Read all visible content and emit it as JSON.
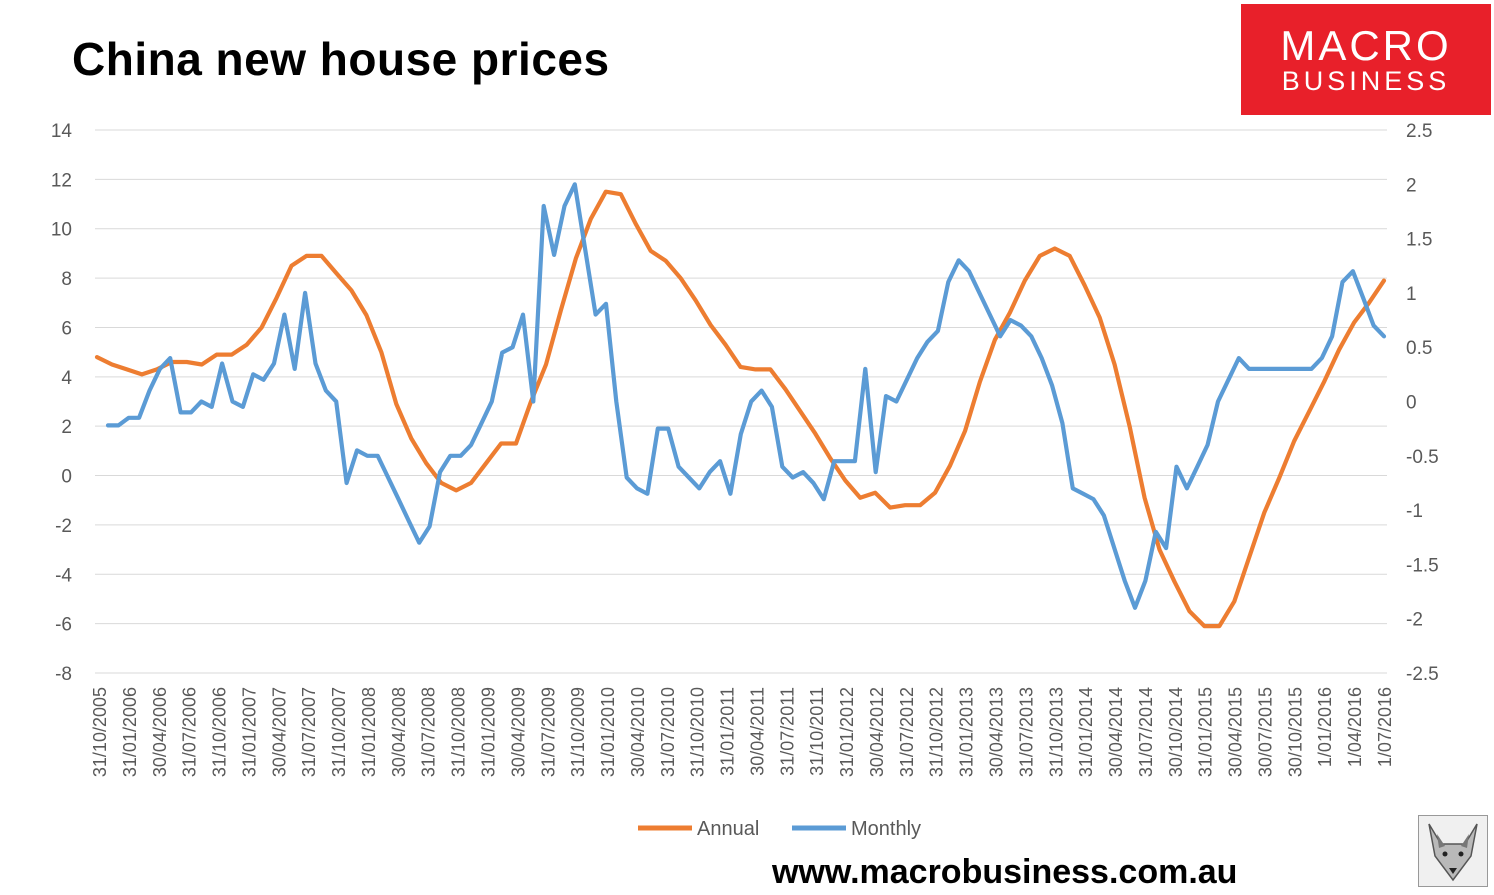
{
  "header": {
    "title": "China new house prices"
  },
  "logo": {
    "line1": "MACRO",
    "line2": "BUSINESS"
  },
  "footer": {
    "url": "www.macrobusiness.com.au"
  },
  "colors": {
    "annual": "#ed7d31",
    "monthly": "#5b9bd5",
    "logo_bg": "#e8202a",
    "grid": "#d9d9d9"
  },
  "chart_data": {
    "type": "line",
    "title": "China new house prices",
    "y_left": {
      "ylim": [
        -8,
        14
      ],
      "ticks": [
        "14",
        "12",
        "10",
        "8",
        "6",
        "4",
        "2",
        "0",
        "-2",
        "-4",
        "-6",
        "-8"
      ]
    },
    "y_right": {
      "ylim": [
        -2.5,
        2.5
      ],
      "ticks": [
        "2.5",
        "2",
        "1.5",
        "1",
        "0.5",
        "0",
        "-0.5",
        "-1",
        "-1.5",
        "-2",
        "-2.5"
      ]
    },
    "x_tick_labels": [
      "31/10/2005",
      "31/01/2006",
      "30/04/2006",
      "31/07/2006",
      "31/10/2006",
      "31/01/2007",
      "30/04/2007",
      "31/07/2007",
      "31/10/2007",
      "31/01/2008",
      "30/04/2008",
      "31/07/2008",
      "31/10/2008",
      "31/01/2009",
      "30/04/2009",
      "31/07/2009",
      "31/10/2009",
      "31/01/2010",
      "30/04/2010",
      "31/07/2010",
      "31/10/2010",
      "31/01/2011",
      "30/04/2011",
      "31/07/2011",
      "31/10/2011",
      "31/01/2012",
      "30/04/2012",
      "31/07/2012",
      "31/10/2012",
      "31/01/2013",
      "30/04/2013",
      "31/07/2013",
      "31/10/2013",
      "31/01/2014",
      "30/04/2014",
      "31/07/2014",
      "30/10/2014",
      "31/01/2015",
      "30/04/2015",
      "30/07/2015",
      "30/10/2015",
      "1/01/2016",
      "1/04/2016",
      "1/07/2016"
    ],
    "grid": true,
    "legend_position": "bottom",
    "series": [
      {
        "name": "Annual",
        "axis": "left",
        "values": [
          4.8,
          4.5,
          4.3,
          4.1,
          4.3,
          4.6,
          4.6,
          4.5,
          4.9,
          4.9,
          5.3,
          6.0,
          7.2,
          8.5,
          8.9,
          8.9,
          8.2,
          7.5,
          6.5,
          5.0,
          2.9,
          1.5,
          0.5,
          -0.3,
          -0.6,
          -0.3,
          0.5,
          1.3,
          1.3,
          3.0,
          4.5,
          6.7,
          8.8,
          10.4,
          11.5,
          11.4,
          10.2,
          9.1,
          8.7,
          8.0,
          7.1,
          6.1,
          5.3,
          4.4,
          4.3,
          4.3,
          3.5,
          2.6,
          1.7,
          0.7,
          -0.2,
          -0.9,
          -0.7,
          -1.3,
          -1.2,
          -1.2,
          -0.7,
          0.4,
          1.8,
          3.8,
          5.5,
          6.6,
          7.9,
          8.9,
          9.2,
          8.9,
          7.7,
          6.4,
          4.5,
          2.0,
          -0.9,
          -3.0,
          -4.3,
          -5.5,
          -6.1,
          -6.1,
          -5.1,
          -3.3,
          -1.5,
          -0.1,
          1.4,
          2.6,
          3.8,
          5.1,
          6.2,
          7.0,
          7.9
        ]
      },
      {
        "name": "Monthly",
        "axis": "right",
        "values": [
          -0.22,
          -0.22,
          -0.15,
          -0.15,
          0.1,
          0.3,
          0.4,
          -0.1,
          -0.1,
          0.0,
          -0.05,
          0.35,
          0.0,
          -0.05,
          0.25,
          0.2,
          0.35,
          0.8,
          0.3,
          1.0,
          0.35,
          0.1,
          0.0,
          -0.75,
          -0.45,
          -0.5,
          -0.5,
          -0.7,
          -0.9,
          -1.1,
          -1.3,
          -1.15,
          -0.65,
          -0.5,
          -0.5,
          -0.4,
          -0.2,
          0.0,
          0.45,
          0.5,
          0.8,
          0.0,
          1.8,
          1.35,
          1.8,
          2.0,
          1.4,
          0.8,
          0.9,
          0.0,
          -0.7,
          -0.8,
          -0.85,
          -0.25,
          -0.25,
          -0.6,
          -0.7,
          -0.8,
          -0.65,
          -0.55,
          -0.85,
          -0.3,
          0.0,
          0.1,
          -0.05,
          -0.6,
          -0.7,
          -0.65,
          -0.75,
          -0.9,
          -0.55,
          -0.55,
          -0.55,
          0.3,
          -0.65,
          0.05,
          0.0,
          0.2,
          0.4,
          0.55,
          0.65,
          1.1,
          1.3,
          1.2,
          1.0,
          0.8,
          0.6,
          0.75,
          0.7,
          0.6,
          0.4,
          0.15,
          -0.2,
          -0.8,
          -0.85,
          -0.9,
          -1.05,
          -1.35,
          -1.65,
          -1.9,
          -1.65,
          -1.2,
          -1.35,
          -0.6,
          -0.8,
          -0.6,
          -0.4,
          0.0,
          0.2,
          0.4,
          0.3,
          0.3,
          0.3,
          0.3,
          0.3,
          0.3,
          0.3,
          0.4,
          0.6,
          1.1,
          1.2,
          0.95,
          0.7,
          0.6
        ]
      }
    ]
  }
}
